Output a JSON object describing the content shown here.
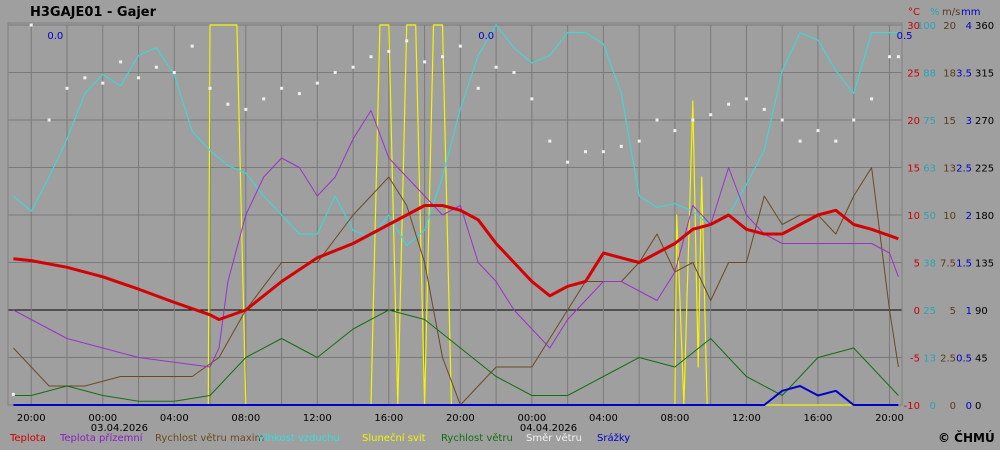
{
  "station_title": "H3GAJE01 - Gajer",
  "copyright": "© ČHMÚ",
  "colors": {
    "background": "#9f9f9f",
    "grid": "#7a7a7a",
    "temperature": "#d40000",
    "ground_temperature": "#9a32c8",
    "wind_gust": "#6b4a22",
    "humidity": "#44d4d4",
    "sunshine": "#f4f400",
    "wind_speed": "#136e13",
    "wind_direction": "#f0f0f0",
    "precipitation": "#0000cc"
  },
  "legend": [
    {
      "label": "Teplota",
      "color": "#cc0000"
    },
    {
      "label": "Teplota přízemní",
      "color": "#8a1fc0"
    },
    {
      "label": "Rychlost větru maxim",
      "color": "#6b4a22"
    },
    {
      "label": "Vlhkost vzduchu",
      "color": "#33e0e0"
    },
    {
      "label": "Sluneční svit",
      "color": "#f4f400"
    },
    {
      "label": "Rychlost větru",
      "color": "#136e13"
    },
    {
      "label": "Směr větru",
      "color": "#f0f0f0"
    },
    {
      "label": "Srážky",
      "color": "#0000cc"
    }
  ],
  "axes": {
    "units": [
      "°C",
      "%",
      "m/s",
      "mm"
    ],
    "temperature": {
      "color": "#cc0000",
      "ticks": [
        "30",
        "25",
        "20",
        "15",
        "10",
        "5",
        "0",
        "-5",
        "-10"
      ]
    },
    "humidity": {
      "color": "#2aa5b5",
      "ticks": [
        "100",
        "88",
        "75",
        "63",
        "50",
        "38",
        "25",
        "13",
        "0"
      ]
    },
    "wind": {
      "color": "#5a3b1a",
      "ticks": [
        "20",
        "18",
        "15",
        "13",
        "10",
        "7.5",
        "5",
        "2.5",
        "0"
      ]
    },
    "precip": {
      "color": "#0000cc",
      "ticks": [
        "4",
        "3.5",
        "3",
        "2.5",
        "2",
        "1.5",
        "1",
        "0.5",
        "0"
      ]
    },
    "direction": {
      "color": "#000000",
      "ticks": [
        "360",
        "315",
        "270",
        "225",
        "180",
        "135",
        "90",
        "45",
        "0"
      ]
    }
  },
  "x_ticks": [
    "20:00",
    "00:00",
    "04:00",
    "08:00",
    "12:00",
    "16:00",
    "20:00",
    "00:00",
    "04:00",
    "08:00",
    "12:00",
    "16:00",
    "20:00"
  ],
  "date_labels": [
    "03.04.2026",
    "04.04.2026"
  ],
  "precip_labels": [
    {
      "text": "0.0",
      "hours": 0.9
    },
    {
      "text": "0.0",
      "hours": 25.0
    },
    {
      "text": "0.5",
      "hours": 48.4
    }
  ],
  "chart_data": {
    "type": "line",
    "x_label_hours": [
      0,
      4,
      8,
      12,
      16,
      20,
      24,
      28,
      32,
      36,
      40,
      44,
      48
    ],
    "series": [
      {
        "name": "Teplota",
        "unit": "°C",
        "x": [
          -1,
          0,
          2,
          4,
          6,
          8,
          10,
          10.5,
          12,
          14,
          16,
          18,
          19,
          20,
          22,
          23,
          24,
          25,
          26,
          27,
          28,
          29,
          30,
          31,
          32,
          33,
          34,
          35,
          36,
          37,
          38,
          39,
          40,
          41,
          42,
          43,
          44,
          45,
          46,
          47,
          48.5
        ],
        "y": [
          5.4,
          5.2,
          4.5,
          3.5,
          2.2,
          0.8,
          -0.5,
          -1,
          0,
          3,
          5.5,
          7,
          8,
          9,
          11,
          11,
          10.5,
          9.5,
          7,
          5,
          3,
          1.5,
          2.5,
          3,
          6,
          5.5,
          5,
          6,
          7,
          8.5,
          9,
          10,
          8.5,
          8,
          8,
          9,
          10,
          10.5,
          9,
          8.5,
          7.5
        ]
      },
      {
        "name": "Teplota přízemní",
        "unit": "°C",
        "x": [
          -1,
          0,
          2,
          4,
          6,
          8,
          10,
          10.5,
          11,
          12,
          13,
          14,
          15,
          16,
          17,
          18,
          19,
          20,
          21,
          22,
          23,
          24,
          25,
          26,
          27,
          28,
          29,
          30,
          31,
          32,
          33,
          34,
          35,
          36,
          37,
          38,
          39,
          40,
          41,
          42,
          43,
          44,
          45,
          46,
          47,
          48,
          48.5
        ],
        "y": [
          0,
          -1,
          -3,
          -4,
          -5,
          -5.5,
          -6,
          -4,
          3,
          10,
          14,
          16,
          15,
          12,
          14,
          18,
          21,
          16,
          14,
          12,
          10,
          11,
          5,
          3,
          0,
          -2,
          -4,
          -1,
          1,
          3,
          3,
          2,
          1,
          4,
          11,
          9,
          15,
          10,
          8,
          7,
          7,
          7,
          7,
          7,
          7,
          6,
          3.5
        ]
      },
      {
        "name": "Rychlost větru maxim",
        "unit": "m/s",
        "x": [
          -1,
          1,
          3,
          5,
          7,
          9,
          10.5,
          12,
          14,
          16,
          18,
          19,
          20,
          21,
          22,
          23,
          24,
          25,
          26,
          28,
          30,
          31,
          32,
          33,
          34,
          35,
          36,
          37,
          38,
          39,
          40,
          41,
          42,
          43,
          44,
          45,
          46,
          47,
          48,
          48.5
        ],
        "y": [
          3,
          1,
          1,
          1.5,
          1.5,
          1.5,
          2.5,
          5,
          7.5,
          7.5,
          10,
          11,
          12,
          10.5,
          7.5,
          2.5,
          0,
          1,
          2,
          2,
          5,
          6.5,
          6.5,
          6.5,
          7.5,
          9,
          7,
          7.5,
          5.5,
          7.5,
          7.5,
          11,
          9.5,
          10,
          10,
          9,
          11,
          12.5,
          5,
          2
        ]
      },
      {
        "name": "Vlhkost vzduchu",
        "unit": "%",
        "x": [
          -1,
          0,
          1,
          2,
          3,
          4,
          5,
          6,
          7,
          8,
          9,
          10,
          11,
          12,
          13,
          14,
          15,
          16,
          17,
          18,
          19,
          20,
          21,
          22,
          23,
          24,
          25,
          26,
          27,
          28,
          29,
          30,
          31,
          32,
          33,
          34,
          35,
          36,
          37,
          38,
          39,
          40,
          41,
          42,
          43,
          44,
          45,
          46,
          47,
          48,
          48.5
        ],
        "y": [
          55,
          51,
          60,
          70,
          82,
          87,
          84,
          92,
          94,
          87,
          72,
          67,
          63,
          61,
          55,
          50,
          45,
          45,
          55,
          46,
          44,
          50,
          42,
          46,
          60,
          78,
          92,
          100,
          94,
          90,
          92,
          98,
          98,
          95,
          82,
          55,
          52,
          53,
          51,
          47,
          50,
          58,
          67,
          88,
          98,
          96,
          88,
          82,
          98,
          98,
          98
        ]
      },
      {
        "name": "Sluneční svit",
        "unit": "%",
        "x": [
          -1,
          9.9,
          10,
          11.5,
          12,
          19,
          19.5,
          20,
          20.5,
          21,
          21.5,
          22,
          22.5,
          23,
          23.5,
          24,
          25,
          26,
          27,
          28,
          29,
          30,
          31,
          32,
          33,
          34,
          35,
          36,
          36.1,
          36.5,
          37,
          37.3,
          37.5,
          37.8,
          38,
          38.5,
          48.5
        ],
        "y": [
          0,
          0,
          100,
          100,
          0,
          0,
          100,
          100,
          0,
          100,
          100,
          0,
          100,
          100,
          0,
          0,
          0,
          0,
          0,
          0,
          0,
          0,
          0,
          0,
          0,
          0,
          0,
          0,
          50,
          0,
          80,
          10,
          60,
          0,
          0,
          0,
          0
        ]
      },
      {
        "name": "Rychlost větru",
        "unit": "m/s",
        "x": [
          -1,
          0,
          2,
          4,
          6,
          8,
          10,
          12,
          14,
          16,
          18,
          20,
          22,
          24,
          26,
          28,
          30,
          32,
          34,
          36,
          38,
          40,
          42,
          44,
          46,
          48,
          48.5
        ],
        "y": [
          0.5,
          0.5,
          1,
          0.5,
          0.2,
          0.2,
          0.5,
          2.5,
          3.5,
          2.5,
          4,
          5,
          4.5,
          3,
          1.5,
          0.5,
          0.5,
          1.5,
          2.5,
          2,
          3.5,
          1.5,
          0.5,
          2.5,
          3,
          1,
          0.5
        ]
      },
      {
        "name": "Směr větru",
        "unit": "°",
        "x": [
          -1,
          0,
          1,
          2,
          3,
          4,
          5,
          6,
          7,
          8,
          9,
          10,
          11,
          12,
          13,
          14,
          15,
          16,
          17,
          18,
          19,
          20,
          21,
          22,
          23,
          24,
          25,
          26,
          27,
          28,
          29,
          30,
          31,
          32,
          33,
          34,
          35,
          36,
          37,
          38,
          39,
          40,
          41,
          42,
          43,
          44,
          45,
          46,
          47,
          48,
          48.5
        ],
        "y": [
          10,
          360,
          270,
          300,
          310,
          305,
          325,
          310,
          320,
          315,
          340,
          300,
          285,
          280,
          290,
          300,
          295,
          305,
          315,
          320,
          330,
          335,
          345,
          325,
          330,
          340,
          300,
          320,
          315,
          290,
          250,
          230,
          240,
          240,
          245,
          250,
          270,
          260,
          270,
          275,
          285,
          290,
          280,
          270,
          250,
          260,
          250,
          270,
          290,
          330,
          330
        ]
      },
      {
        "name": "Srážky",
        "unit": "mm",
        "x": [
          -1,
          38,
          38.5,
          39,
          41,
          42,
          43,
          44,
          45,
          46,
          47,
          48.5
        ],
        "y": [
          0,
          0,
          0,
          0,
          0,
          0.15,
          0.2,
          0.1,
          0.15,
          0,
          0,
          0
        ]
      }
    ],
    "yranges": {
      "temperature": [
        -10,
        30
      ],
      "humidity": [
        0,
        100
      ],
      "wind": [
        0,
        20
      ],
      "precip": [
        0,
        4
      ],
      "direction": [
        0,
        360
      ]
    }
  }
}
